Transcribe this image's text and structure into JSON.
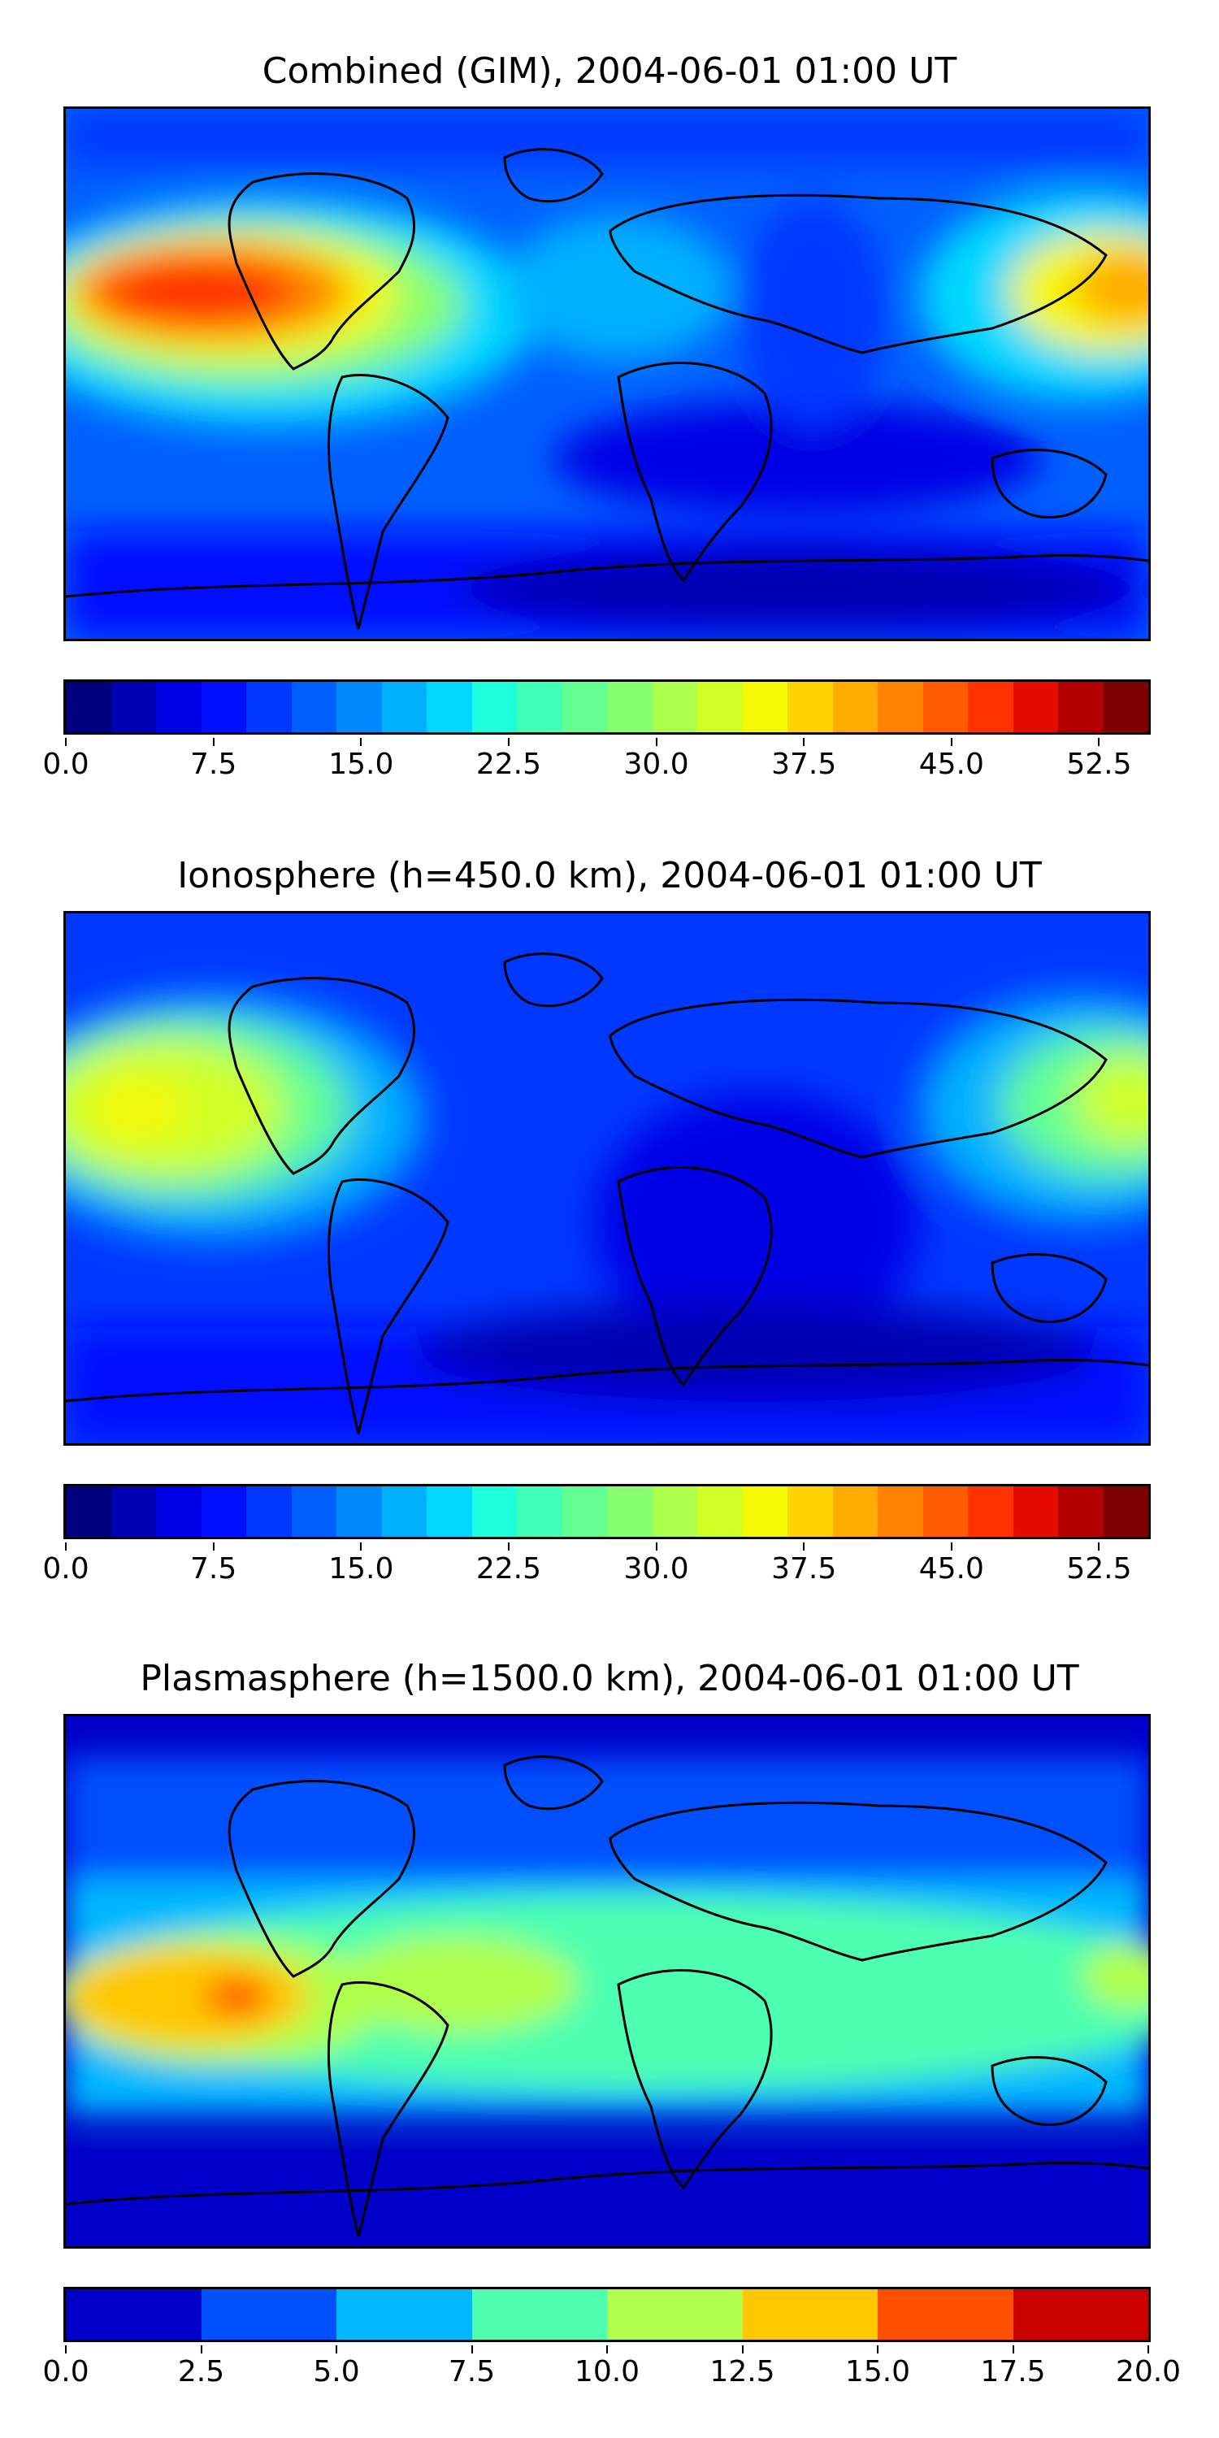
{
  "panels": [
    {
      "title": "Combined (GIM), 2004-06-01 01:00 UT",
      "colorbar": {
        "colors": [
          "#00007f",
          "#0000b2",
          "#0000e5",
          "#0010ff",
          "#0038ff",
          "#0060ff",
          "#0088ff",
          "#00b0ff",
          "#00d8ff",
          "#1cffdb",
          "#40ffb7",
          "#64ff93",
          "#88ff6e",
          "#acff4a",
          "#d0ff26",
          "#f4f802",
          "#ffd300",
          "#ffab00",
          "#ff8200",
          "#ff5a00",
          "#ff3200",
          "#e50a00",
          "#b20000",
          "#7f0000"
        ],
        "ticks": [
          "0.0",
          "7.5",
          "15.0",
          "22.5",
          "30.0",
          "37.5",
          "45.0",
          "52.5"
        ],
        "vmin": 0,
        "vmax": 55,
        "tick_values": [
          0,
          7.5,
          15,
          22.5,
          30,
          37.5,
          45,
          52.5
        ]
      }
    },
    {
      "title": "Ionosphere  (h=450.0 km), 2004-06-01 01:00 UT",
      "colorbar": {
        "colors": [
          "#00007f",
          "#0000b2",
          "#0000e5",
          "#0010ff",
          "#0038ff",
          "#0060ff",
          "#0088ff",
          "#00b0ff",
          "#00d8ff",
          "#1cffdb",
          "#40ffb7",
          "#64ff93",
          "#88ff6e",
          "#acff4a",
          "#d0ff26",
          "#f4f802",
          "#ffd300",
          "#ffab00",
          "#ff8200",
          "#ff5a00",
          "#ff3200",
          "#e50a00",
          "#b20000",
          "#7f0000"
        ],
        "ticks": [
          "0.0",
          "7.5",
          "15.0",
          "22.5",
          "30.0",
          "37.5",
          "45.0",
          "52.5"
        ],
        "vmin": 0,
        "vmax": 55,
        "tick_values": [
          0,
          7.5,
          15,
          22.5,
          30,
          37.5,
          45,
          52.5
        ]
      }
    },
    {
      "title": "Plasmasphere (h=1500.0 km), 2004-06-01 01:00 UT",
      "colorbar": {
        "colors": [
          "#0000c8",
          "#0050ff",
          "#00b8ff",
          "#4effb0",
          "#b0ff4e",
          "#ffc800",
          "#ff5000",
          "#c80000"
        ],
        "ticks": [
          "0.0",
          "2.5",
          "5.0",
          "7.5",
          "10.0",
          "12.5",
          "15.0",
          "17.5",
          "20.0"
        ],
        "vmin": 0,
        "vmax": 20,
        "tick_values": [
          0,
          2.5,
          5,
          7.5,
          10,
          12.5,
          15,
          17.5,
          20
        ]
      }
    }
  ]
}
